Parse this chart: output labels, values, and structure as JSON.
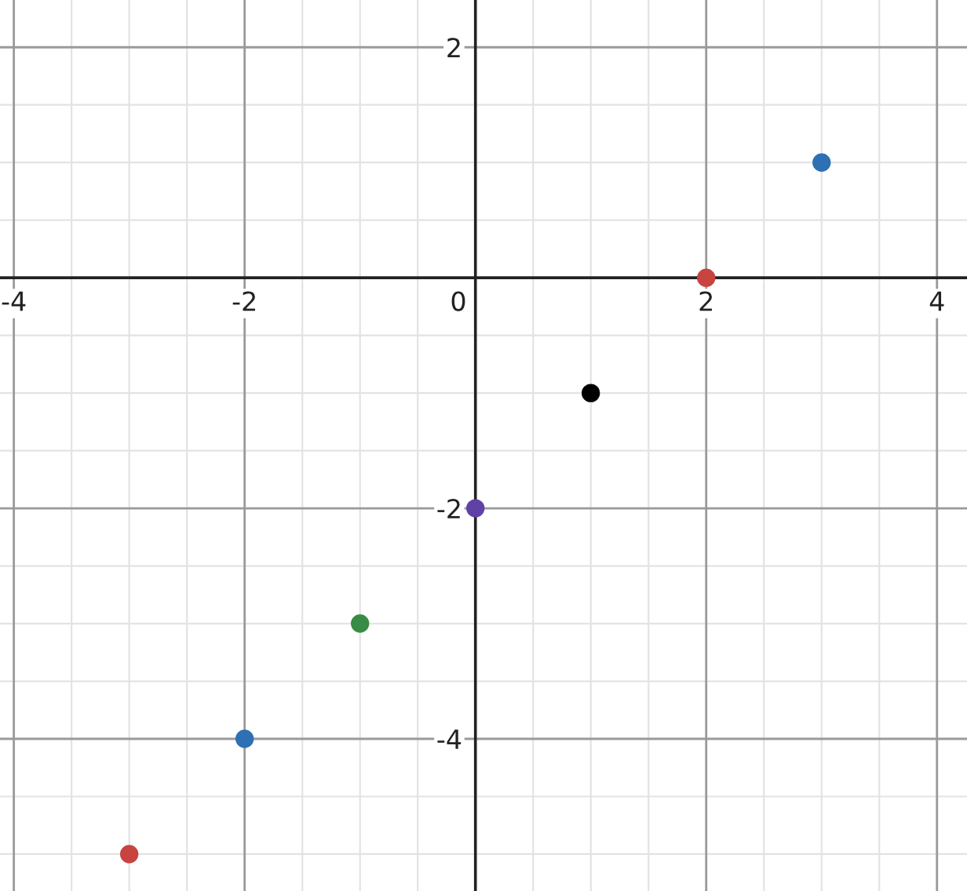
{
  "chart_data": {
    "type": "scatter",
    "x": [
      -3,
      -2,
      -1,
      0,
      1,
      2,
      3
    ],
    "values": [
      -5,
      -4,
      -3,
      -2,
      -1,
      0,
      1
    ],
    "colors": [
      "#c74440",
      "#2d70b3",
      "#388c46",
      "#6042a6",
      "#000000",
      "#c74440",
      "#2d70b3"
    ],
    "xlim": [
      -4.12,
      4.26
    ],
    "ylim": [
      -5.32,
      2.41
    ],
    "xticks": [
      -4,
      -2,
      0,
      2,
      4
    ],
    "yticks": [
      -4,
      -2,
      2
    ],
    "grid": true,
    "marker": "circle"
  }
}
